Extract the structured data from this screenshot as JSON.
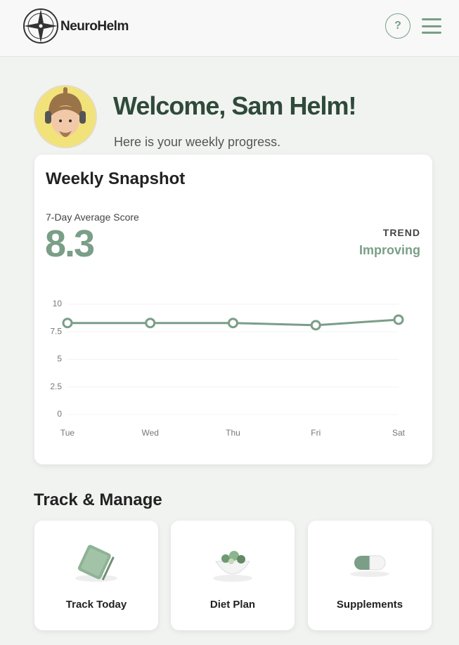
{
  "header": {
    "brand": "NeuroHelm",
    "help": "?"
  },
  "welcome": {
    "title": "Welcome, Sam Helm!",
    "subtitle": "Here is your weekly progress."
  },
  "snapshot": {
    "title": "Weekly Snapshot",
    "score_label": "7-Day Average Score",
    "score": "8.3",
    "trend_label": "TREND",
    "trend_value": "Improving"
  },
  "chart_data": {
    "type": "line",
    "categories": [
      "Tue",
      "Wed",
      "Thu",
      "Fri",
      "Sat"
    ],
    "values": [
      8.3,
      8.3,
      8.3,
      8.1,
      8.6
    ],
    "color": "#7a9e87",
    "ylim": [
      0,
      10
    ],
    "yticks": [
      0,
      2.5,
      5,
      7.5,
      10
    ],
    "grid": true
  },
  "track": {
    "title": "Track & Manage",
    "cards": [
      {
        "label": "Track Today"
      },
      {
        "label": "Diet Plan"
      },
      {
        "label": "Supplements"
      }
    ]
  }
}
